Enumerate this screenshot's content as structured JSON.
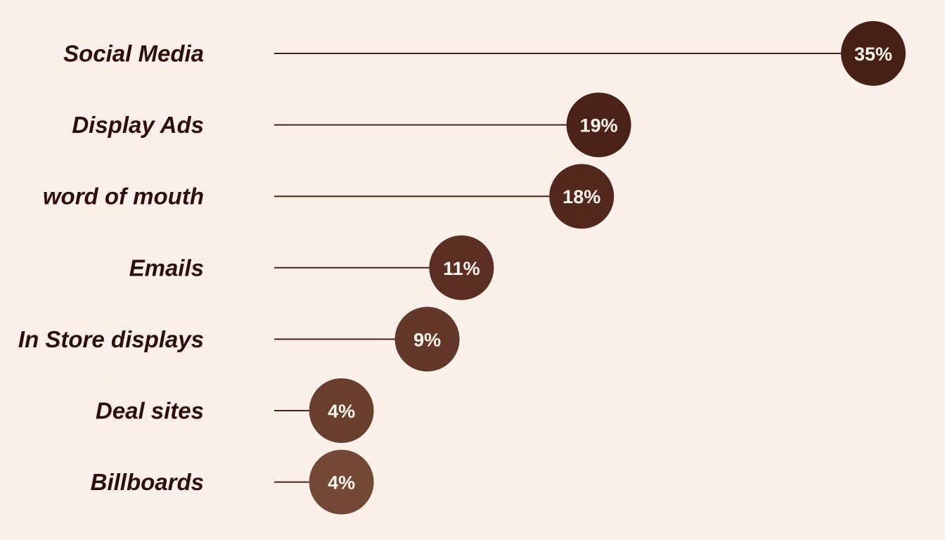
{
  "chart_data": {
    "type": "lollipop",
    "categories": [
      "Social Media",
      "Display Ads",
      "word of mouth",
      "Emails",
      "In Store displays",
      "Deal sites",
      "Billboards"
    ],
    "values": [
      35,
      19,
      18,
      11,
      9,
      4,
      4
    ],
    "value_labels": [
      "35%",
      "19%",
      "18%",
      "11%",
      "9%",
      "4%",
      "4%"
    ],
    "unit": "%",
    "xlim": [
      0,
      37
    ],
    "colors": [
      "#461F15",
      "#4A2218",
      "#52281C",
      "#5B3022",
      "#633828",
      "#6B3F2D",
      "#734834"
    ],
    "background": "#FBF0EA",
    "label_color": "#2E0F08",
    "grid": false,
    "legend": "none"
  }
}
